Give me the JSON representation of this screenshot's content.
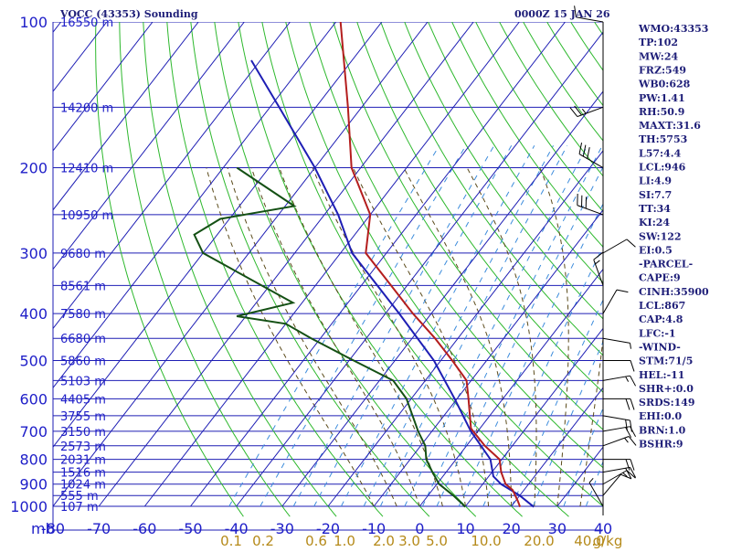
{
  "chart_data": {
    "type": "skewt",
    "title": "VOCC (43353) Sounding",
    "datetime": "0000Z 15 JAN 26",
    "pressure_ticks": [
      100,
      200,
      300,
      400,
      500,
      600,
      700,
      800,
      900,
      1000
    ],
    "pressure_axis_label": "mb",
    "temperature_ticks": [
      "-80",
      "-70",
      "-60",
      "-50",
      "-40",
      "-30",
      "-20",
      "-10",
      "0",
      "10",
      "20",
      "30",
      "40"
    ],
    "mixing_ratio_labels": [
      "0.1",
      "0.2",
      "0.6",
      "1.0",
      "2.0",
      "3.0",
      "5.0",
      "10.0",
      "20.0",
      "40.0"
    ],
    "mixing_ratio_unit": "g/kg",
    "height_labels": [
      {
        "p": 100,
        "label": "16550 m"
      },
      {
        "p": 150,
        "label": "14200 m"
      },
      {
        "p": 200,
        "label": "12410 m"
      },
      {
        "p": 250,
        "label": "10950 m"
      },
      {
        "p": 300,
        "label": "9680 m"
      },
      {
        "p": 350,
        "label": "8561 m"
      },
      {
        "p": 400,
        "label": "7580 m"
      },
      {
        "p": 450,
        "label": "6680 m"
      },
      {
        "p": 500,
        "label": "5860 m"
      },
      {
        "p": 550,
        "label": "5103 m"
      },
      {
        "p": 600,
        "label": "4405 m"
      },
      {
        "p": 650,
        "label": "3755 m"
      },
      {
        "p": 700,
        "label": "3150 m"
      },
      {
        "p": 750,
        "label": "2573 m"
      },
      {
        "p": 800,
        "label": "2031 m"
      },
      {
        "p": 850,
        "label": "1516 m"
      },
      {
        "p": 900,
        "label": "1024 m"
      },
      {
        "p": 950,
        "label": "555 m"
      },
      {
        "p": 1000,
        "label": "107 m"
      }
    ],
    "temperature_profile": [
      {
        "p": 1003,
        "t": 22.0
      },
      {
        "p": 975,
        "t": 20.5
      },
      {
        "p": 925,
        "t": 17.5
      },
      {
        "p": 900,
        "t": 15.0
      },
      {
        "p": 850,
        "t": 12.0
      },
      {
        "p": 800,
        "t": 9.5
      },
      {
        "p": 750,
        "t": 4.0
      },
      {
        "p": 700,
        "t": -1.0
      },
      {
        "p": 690,
        "t": -2.0
      },
      {
        "p": 600,
        "t": -7.5
      },
      {
        "p": 550,
        "t": -11.0
      },
      {
        "p": 500,
        "t": -17.5
      },
      {
        "p": 450,
        "t": -25.0
      },
      {
        "p": 400,
        "t": -34.0
      },
      {
        "p": 350,
        "t": -43.5
      },
      {
        "p": 300,
        "t": -54.5
      },
      {
        "p": 250,
        "t": -60.0
      },
      {
        "p": 200,
        "t": -72.0
      },
      {
        "p": 150,
        "t": -83.0
      },
      {
        "p": 100,
        "t": -99.0
      }
    ],
    "dewpoint_profile": [
      {
        "p": 1003,
        "t": 10.0
      },
      {
        "p": 990,
        "t": 9.0
      },
      {
        "p": 950,
        "t": 5.5
      },
      {
        "p": 900,
        "t": 0.5
      },
      {
        "p": 850,
        "t": -3.0
      },
      {
        "p": 800,
        "t": -6.5
      },
      {
        "p": 750,
        "t": -9.0
      },
      {
        "p": 700,
        "t": -13.0
      },
      {
        "p": 600,
        "t": -21.0
      },
      {
        "p": 550,
        "t": -27.0
      },
      {
        "p": 500,
        "t": -39.0
      },
      {
        "p": 450,
        "t": -52.0
      },
      {
        "p": 420,
        "t": -60.0
      },
      {
        "p": 405,
        "t": -72.0
      },
      {
        "p": 380,
        "t": -62.0
      },
      {
        "p": 300,
        "t": -90.0
      },
      {
        "p": 275,
        "t": -95.0
      },
      {
        "p": 255,
        "t": -92.0
      },
      {
        "p": 240,
        "t": -78.0
      },
      {
        "p": 200,
        "t": -97.0
      }
    ],
    "parcel_profile": [
      {
        "p": 1003,
        "t": 25.0
      },
      {
        "p": 950,
        "t": 20.0
      },
      {
        "p": 900,
        "t": 14.0
      },
      {
        "p": 867,
        "t": 11.0
      },
      {
        "p": 800,
        "t": 7.5
      },
      {
        "p": 700,
        "t": -1.5
      },
      {
        "p": 600,
        "t": -10.5
      },
      {
        "p": 500,
        "t": -21.5
      },
      {
        "p": 400,
        "t": -37.0
      },
      {
        "p": 300,
        "t": -57.5
      },
      {
        "p": 250,
        "t": -67.0
      },
      {
        "p": 200,
        "t": -80.0
      },
      {
        "p": 150,
        "t": -98.0
      },
      {
        "p": 120,
        "t": -112.0
      }
    ],
    "wind_barbs": [
      {
        "p": 100,
        "dir": 280,
        "spd": 10
      },
      {
        "p": 150,
        "dir": 250,
        "spd": 25
      },
      {
        "p": 200,
        "dir": 300,
        "spd": 30
      },
      {
        "p": 250,
        "dir": 290,
        "spd": 30
      },
      {
        "p": 300,
        "dir": 60,
        "spd": 10
      },
      {
        "p": 350,
        "dir": 340,
        "spd": 15
      },
      {
        "p": 400,
        "dir": 30,
        "spd": 10
      },
      {
        "p": 450,
        "dir": 100,
        "spd": 5
      },
      {
        "p": 500,
        "dir": 90,
        "spd": 10
      },
      {
        "p": 550,
        "dir": 80,
        "spd": 15
      },
      {
        "p": 600,
        "dir": 90,
        "spd": 20
      },
      {
        "p": 650,
        "dir": 100,
        "spd": 20
      },
      {
        "p": 700,
        "dir": 80,
        "spd": 20
      },
      {
        "p": 750,
        "dir": 70,
        "spd": 15
      },
      {
        "p": 800,
        "dir": 90,
        "spd": 20
      },
      {
        "p": 850,
        "dir": 80,
        "spd": 20
      },
      {
        "p": 900,
        "dir": 60,
        "spd": 15
      },
      {
        "p": 950,
        "dir": 40,
        "spd": 10
      },
      {
        "p": 1000,
        "dir": 330,
        "spd": 5
      }
    ],
    "indices": [
      "WMO:43353",
      "TP:102",
      "MW:24",
      "FRZ:549",
      "WB0:628",
      "PW:1.41",
      "RH:50.9",
      "MAXT:31.6",
      "TH:5753",
      "L57:4.4",
      "LCL:946",
      "LI:4.9",
      "SI:7.7",
      "TT:34",
      "KI:24",
      "SW:122",
      "EI:0.5",
      "-PARCEL-",
      "CAPE:9",
      "CINH:35900",
      "LCL:867",
      "CAP:4.8",
      "LFC:-1",
      "-WIND-",
      "STM:71/5",
      "HEL:-11",
      "SHR+:0.0",
      "SRDS:149",
      "EHI:0.0",
      "BRN:1.0",
      "BSHR:9"
    ],
    "colors": {
      "isobar": "#1e1eb4",
      "isotherm": "#1e1eb4",
      "dry_adiabat": "#2db82d",
      "moist_adiabat": "#5a4a1a",
      "mixing_ratio": "#3c8cdc",
      "temperature": "#b41e1e",
      "dewpoint": "#145014",
      "parcel": "#1e1eb4",
      "label": "#1e1ec8",
      "mix_label": "#b58a1a",
      "header": "#1e1e78"
    }
  }
}
